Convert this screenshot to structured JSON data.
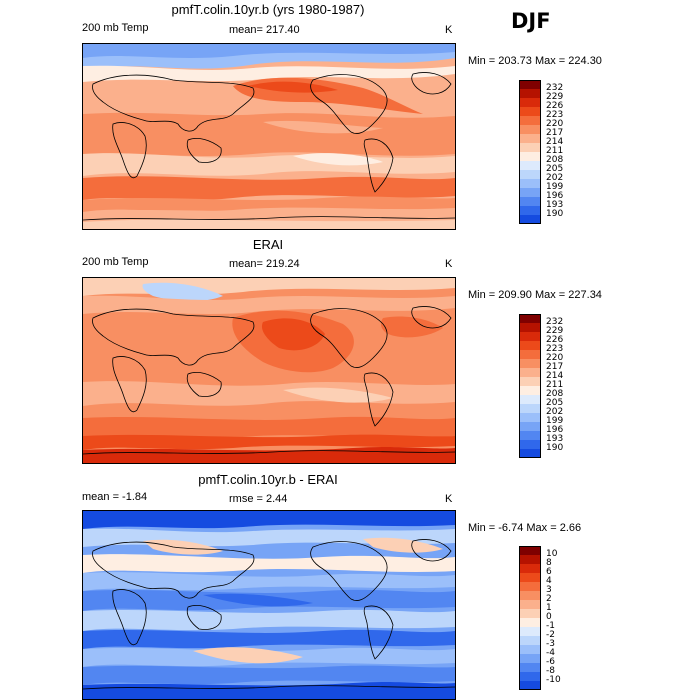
{
  "season": "DJF",
  "palette_warm": [
    "#7f0000",
    "#b51200",
    "#d92a0a",
    "#ec4a1a",
    "#f46d3c",
    "#f88f62",
    "#fbb08c",
    "#fcd0b5",
    "#feeee2"
  ],
  "palette_cool": [
    "#ddeafc",
    "#bcd6fb",
    "#9bbffa",
    "#77a4f6",
    "#5286f1",
    "#3068eb",
    "#154be0",
    "#0630c8",
    "#001899",
    "#000a70"
  ],
  "panels": [
    {
      "id": "model",
      "title": "pmfT.colin.10yr.b (yrs 1980-1987)",
      "left_label": "200 mb Temp",
      "mid_label": "mean= 217.40",
      "right_label": "K",
      "minmax": "Min = 203.73 Max = 224.30",
      "colorbar_ticks": [
        "232",
        "229",
        "226",
        "223",
        "220",
        "217",
        "214",
        "211",
        "208",
        "205",
        "202",
        "199",
        "196",
        "193",
        "190"
      ]
    },
    {
      "id": "obs",
      "title": "ERAI",
      "left_label": "200 mb Temp",
      "mid_label": "mean= 219.24",
      "right_label": "K",
      "minmax": "Min = 209.90 Max = 227.34",
      "colorbar_ticks": [
        "232",
        "229",
        "226",
        "223",
        "220",
        "217",
        "214",
        "211",
        "208",
        "205",
        "202",
        "199",
        "196",
        "193",
        "190"
      ]
    },
    {
      "id": "diff",
      "title": "pmfT.colin.10yr.b - ERAI",
      "left_label": "mean =   -1.84",
      "mid_label": "rmse =   2.44",
      "right_label": "K",
      "minmax": "Min =  -6.74 Max =   2.66",
      "colorbar_ticks": [
        "10",
        "8",
        "6",
        "4",
        "3",
        "2",
        "1",
        "0",
        "-1",
        "-2",
        "-3",
        "-4",
        "-6",
        "-8",
        "-10"
      ]
    }
  ]
}
